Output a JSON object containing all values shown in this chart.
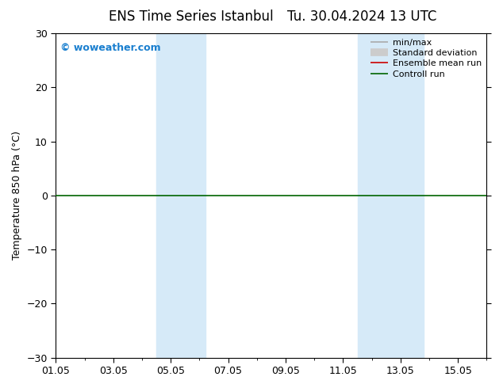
{
  "title": "ENS Time Series Istanbul",
  "title2": "Tu. 30.04.2024 13 UTC",
  "ylabel": "Temperature 850 hPa (°C)",
  "ylim": [
    -30,
    30
  ],
  "yticks": [
    -30,
    -20,
    -10,
    0,
    10,
    20,
    30
  ],
  "xlim": [
    0,
    15
  ],
  "xtick_labels": [
    "01.05",
    "03.05",
    "05.05",
    "07.05",
    "09.05",
    "11.05",
    "13.05",
    "15.05"
  ],
  "xtick_positions": [
    0,
    2,
    4,
    6,
    8,
    10,
    12,
    14
  ],
  "watermark": "© woweather.com",
  "watermark_color": "#1a7fcf",
  "background_color": "#ffffff",
  "plot_bg_color": "#ffffff",
  "shaded_bands": [
    {
      "xmin": 3.5,
      "xmax": 5.2,
      "color": "#d6eaf8",
      "alpha": 1.0
    },
    {
      "xmin": 10.5,
      "xmax": 12.8,
      "color": "#d6eaf8",
      "alpha": 1.0
    }
  ],
  "hline_y": 0,
  "hline_color": "#006400",
  "hline_lw": 1.2,
  "legend_items": [
    {
      "label": "min/max",
      "color": "#aaaaaa",
      "lw": 1.2,
      "type": "line"
    },
    {
      "label": "Standard deviation",
      "color": "#cccccc",
      "lw": 7,
      "type": "line"
    },
    {
      "label": "Ensemble mean run",
      "color": "#cc0000",
      "lw": 1.2,
      "type": "line"
    },
    {
      "label": "Controll run",
      "color": "#006400",
      "lw": 1.2,
      "type": "line"
    }
  ],
  "title_fontsize": 12,
  "tick_fontsize": 9,
  "legend_fontsize": 8,
  "ylabel_fontsize": 9,
  "minor_xtick_interval": 1
}
